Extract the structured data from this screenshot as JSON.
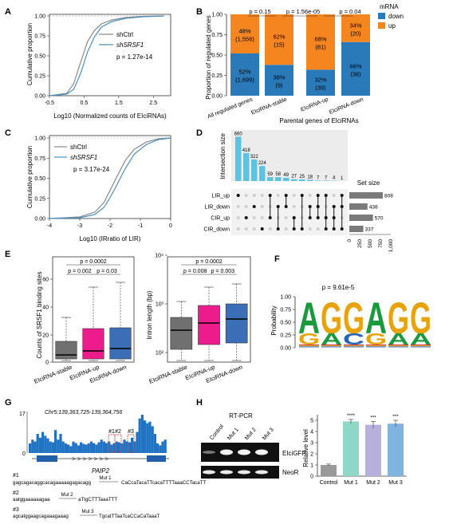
{
  "panels": {
    "A": {
      "letter": "A",
      "ylabel": "Cumulative proportion",
      "xlabel": "Log10 (Normalized counts of EIciRNAs)",
      "xticks": [
        "-0.5",
        "0.5",
        "1.5",
        "2.5"
      ],
      "yticks": [
        "0.00",
        "0.25",
        "0.50",
        "0.75",
        "1.00"
      ],
      "legend": [
        "shCtrl",
        "shSRSF1"
      ],
      "pvalue": "p = 1.27e-14"
    },
    "B": {
      "letter": "B",
      "ylabel": "Proportion of regulated genes",
      "xlabel": "Parental genes of EIciRNAs",
      "yticks": [
        "0.00",
        "0.25",
        "0.50",
        "0.75",
        "1.00"
      ],
      "legend_title": "mRNA",
      "legend": [
        "down",
        "up"
      ],
      "pvalues": [
        "p = 0.15",
        "p = 1.56e-05",
        "p = 0.04"
      ],
      "categories": [
        "All regulated genes",
        "EIciRNA-stable",
        "EIciRNA-up",
        "EIciRNA-down"
      ],
      "down_labels": [
        [
          "52%",
          "(1,699)"
        ],
        [
          "38%",
          "(9)"
        ],
        [
          "32%",
          "(39)"
        ],
        [
          "66%",
          "(38)"
        ]
      ],
      "up_labels": [
        [
          "48%",
          "(1,556)"
        ],
        [
          "62%",
          "(15)"
        ],
        [
          "68%",
          "(81)"
        ],
        [
          "34%",
          "(20)"
        ]
      ]
    },
    "C": {
      "letter": "C",
      "ylabel": "Cumulative proportion",
      "xlabel": "Log10 (IRratio of LIR)",
      "xticks": [
        "-4",
        "-3",
        "-2",
        "-1",
        "0"
      ],
      "yticks": [
        "0.00",
        "0.25",
        "0.50",
        "0.75",
        "1.00"
      ],
      "legend": [
        "shCtrl",
        "shSRSF1"
      ],
      "pvalue": "p = 3.17e-24"
    },
    "D": {
      "letter": "D",
      "ylabel": "Intersection size",
      "set_size_title": "Set size",
      "sets": [
        "LIR_up",
        "LIR_down",
        "CIR_up",
        "CIR_down"
      ],
      "set_size_labels": [
        "808",
        "438",
        "570",
        "337"
      ],
      "set_size_ticks": [
        "0",
        "250",
        "500",
        "750",
        "1,000"
      ],
      "bar_labels": [
        "660",
        "418",
        "322",
        "224",
        "59",
        "58",
        "49",
        "27",
        "25",
        "18",
        "7",
        "7",
        "4",
        "1"
      ]
    },
    "E": {
      "letter": "E",
      "ylabel1": "Counts of SRSF1 binding sites",
      "ylabel2": "Intron length (bp)",
      "categories": [
        "EIciRNA-stable",
        "EIciRNA-up",
        "EIciRNA-down"
      ],
      "p1": [
        "p = 0.0002",
        "p = 0.002",
        "p = 0.03"
      ],
      "p2": [
        "p = 0.0002",
        "p = 0.008",
        "p = 0.003"
      ],
      "yticks1": [
        "0",
        "20",
        "40",
        "60"
      ],
      "yticks2": [
        "10²",
        "10³",
        "10⁴"
      ],
      "colors": [
        "#707070",
        "#ec1c8c",
        "#3a6fb8"
      ]
    },
    "F": {
      "letter": "F",
      "ylabel": "Probability",
      "pvalue": "p = 9.61e-5",
      "yticks": [
        "0.00",
        "0.25",
        "0.50",
        "0.75",
        "1.00"
      ],
      "logo_top": [
        "A",
        "G",
        "G",
        "A",
        "G",
        "G"
      ],
      "logo_mid": [
        "G",
        "A",
        "C",
        "G",
        "A",
        "A"
      ]
    },
    "G": {
      "letter": "G",
      "coord": "Chr5:139,363,725-139,364,756",
      "scale": "17",
      "scale_zero": "0",
      "gene": "PAIP2",
      "sites": [
        "#1",
        "#2",
        "#3"
      ],
      "mut_title_1": "#1",
      "mut_title_2": "#2",
      "mut_title_3": "#3",
      "seq1_left": "gagcagacaggcacagaaaaagagacagg",
      "seq1_mut": "Mut 1",
      "seq1_right": "CaCcaTacaTTcacaTTTTaaaCCTacaTT",
      "seq2_left": "aatggaaaaaagaa",
      "seq2_mut": "Mut 2",
      "seq2_right": "aTtgCTTTaaaTTT",
      "seq3_left": "agcatggaagcagaaagaaag",
      "seq3_mut": "Mut 3",
      "seq3_right": "TgcatTTaaTcaCCaCaTaaaT"
    },
    "H": {
      "letter": "H",
      "title": "RT-PCR",
      "lanes": [
        "Control",
        "Mut 1",
        "Mut 2",
        "Mut 3"
      ],
      "band1": "EIciGFP",
      "band2": "NeoR",
      "ylabel": "Relative level",
      "yticks": [
        "0",
        "1",
        "2",
        "3",
        "4",
        "5"
      ],
      "stars": [
        "****",
        "***",
        "***"
      ]
    }
  },
  "chart_data": [
    {
      "type": "line",
      "title": "",
      "xlabel": "Log10 (Normalized counts of EIciRNAs)",
      "ylabel": "Cumulative proportion",
      "xlim": [
        -0.5,
        3.0
      ],
      "ylim": [
        0,
        1
      ],
      "series": [
        {
          "name": "shCtrl",
          "x": [
            -0.5,
            0.0,
            0.2,
            0.4,
            0.6,
            0.8,
            1.0,
            1.3,
            1.7,
            2.2,
            2.8
          ],
          "y": [
            0,
            0.03,
            0.15,
            0.42,
            0.68,
            0.82,
            0.9,
            0.95,
            0.98,
            0.995,
            1
          ]
        },
        {
          "name": "shSRSF1",
          "x": [
            -0.5,
            0.0,
            0.2,
            0.4,
            0.6,
            0.8,
            1.0,
            1.3,
            1.7,
            2.2,
            2.8
          ],
          "y": [
            0,
            0.02,
            0.08,
            0.28,
            0.55,
            0.74,
            0.86,
            0.93,
            0.97,
            0.99,
            1
          ]
        }
      ]
    },
    {
      "type": "bar",
      "title": "",
      "xlabel": "Parental genes of EIciRNAs",
      "ylabel": "Proportion of regulated genes",
      "categories": [
        "All regulated genes",
        "EIciRNA-stable",
        "EIciRNA-up",
        "EIciRNA-down"
      ],
      "ylim": [
        0,
        1
      ],
      "series": [
        {
          "name": "down",
          "values": [
            0.52,
            0.38,
            0.32,
            0.66
          ],
          "color": "#2a7ab9"
        },
        {
          "name": "up",
          "values": [
            0.48,
            0.62,
            0.68,
            0.34
          ],
          "color": "#f5861f"
        }
      ]
    },
    {
      "type": "line",
      "title": "",
      "xlabel": "Log10 (IRratio of LIR)",
      "ylabel": "Cumulative proportion",
      "xlim": [
        -4,
        0
      ],
      "ylim": [
        0,
        1
      ],
      "series": [
        {
          "name": "shCtrl",
          "x": [
            -4,
            -3,
            -2.5,
            -2.2,
            -2,
            -1.8,
            -1.5,
            -1.2,
            -0.8,
            -0.4,
            0
          ],
          "y": [
            0,
            0.02,
            0.08,
            0.2,
            0.35,
            0.5,
            0.72,
            0.86,
            0.95,
            0.99,
            1
          ]
        },
        {
          "name": "shSRSF1",
          "x": [
            -4,
            -3,
            -2.5,
            -2.2,
            -2,
            -1.8,
            -1.5,
            -1.2,
            -0.8,
            -0.4,
            0
          ],
          "y": [
            0,
            0.01,
            0.05,
            0.14,
            0.26,
            0.4,
            0.62,
            0.8,
            0.92,
            0.98,
            1
          ]
        }
      ]
    },
    {
      "type": "bar",
      "title": "",
      "ylabel": "Intersection size",
      "categories": [
        "1",
        "2",
        "3",
        "4",
        "5",
        "6",
        "7",
        "8",
        "9",
        "10",
        "11",
        "12",
        "13",
        "14"
      ],
      "values": [
        660,
        418,
        322,
        224,
        59,
        58,
        49,
        27,
        25,
        18,
        7,
        7,
        4,
        1
      ]
    },
    {
      "type": "bar",
      "title": "",
      "xlabel": "Set size",
      "categories": [
        "LIR_up",
        "LIR_down",
        "CIR_up",
        "CIR_down"
      ],
      "values": [
        808,
        438,
        570,
        337
      ]
    },
    {
      "type": "bar",
      "title": "",
      "ylabel": "Relative level",
      "categories": [
        "Control",
        "Mut 1",
        "Mut 2",
        "Mut 3"
      ],
      "values": [
        1.0,
        4.9,
        4.6,
        4.7
      ],
      "ylim": [
        0,
        5.5
      ]
    }
  ]
}
